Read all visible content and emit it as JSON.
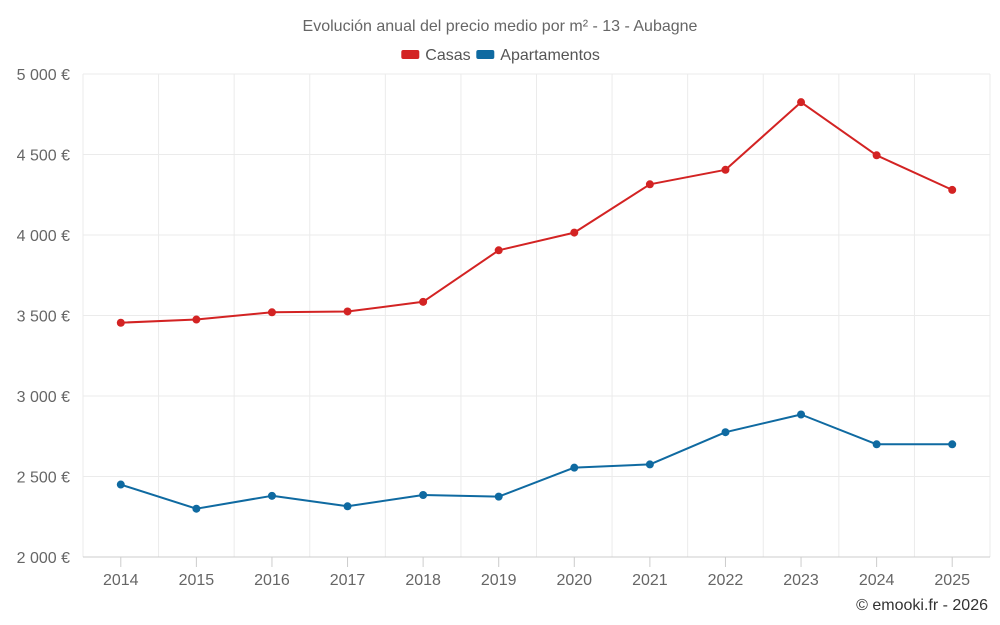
{
  "chart_data": {
    "type": "line",
    "title": "Evolución anual del precio medio por m² - 13 - Aubagne",
    "categories": [
      "2014",
      "2015",
      "2016",
      "2017",
      "2018",
      "2019",
      "2020",
      "2021",
      "2022",
      "2023",
      "2024",
      "2025"
    ],
    "series": [
      {
        "name": "Casas",
        "color": "#d32323",
        "values": [
          3455,
          3475,
          3520,
          3525,
          3585,
          3905,
          4015,
          4315,
          4405,
          4825,
          4495,
          4280
        ]
      },
      {
        "name": "Apartamentos",
        "color": "#0f6aa1",
        "values": [
          2450,
          2300,
          2380,
          2315,
          2385,
          2375,
          2555,
          2575,
          2775,
          2885,
          2700,
          2700
        ]
      }
    ],
    "ylim": [
      2000,
      5000
    ],
    "yticks": [
      2000,
      2500,
      3000,
      3500,
      4000,
      4500,
      5000
    ],
    "ytick_labels": [
      "2 000 €",
      "2 500 €",
      "3 000 €",
      "3 500 €",
      "4 000 €",
      "4 500 €",
      "5 000 €"
    ],
    "xlabel": "",
    "ylabel": "",
    "grid": true,
    "legend_position": "top-center"
  },
  "credit": "© emooki.fr - 2026"
}
